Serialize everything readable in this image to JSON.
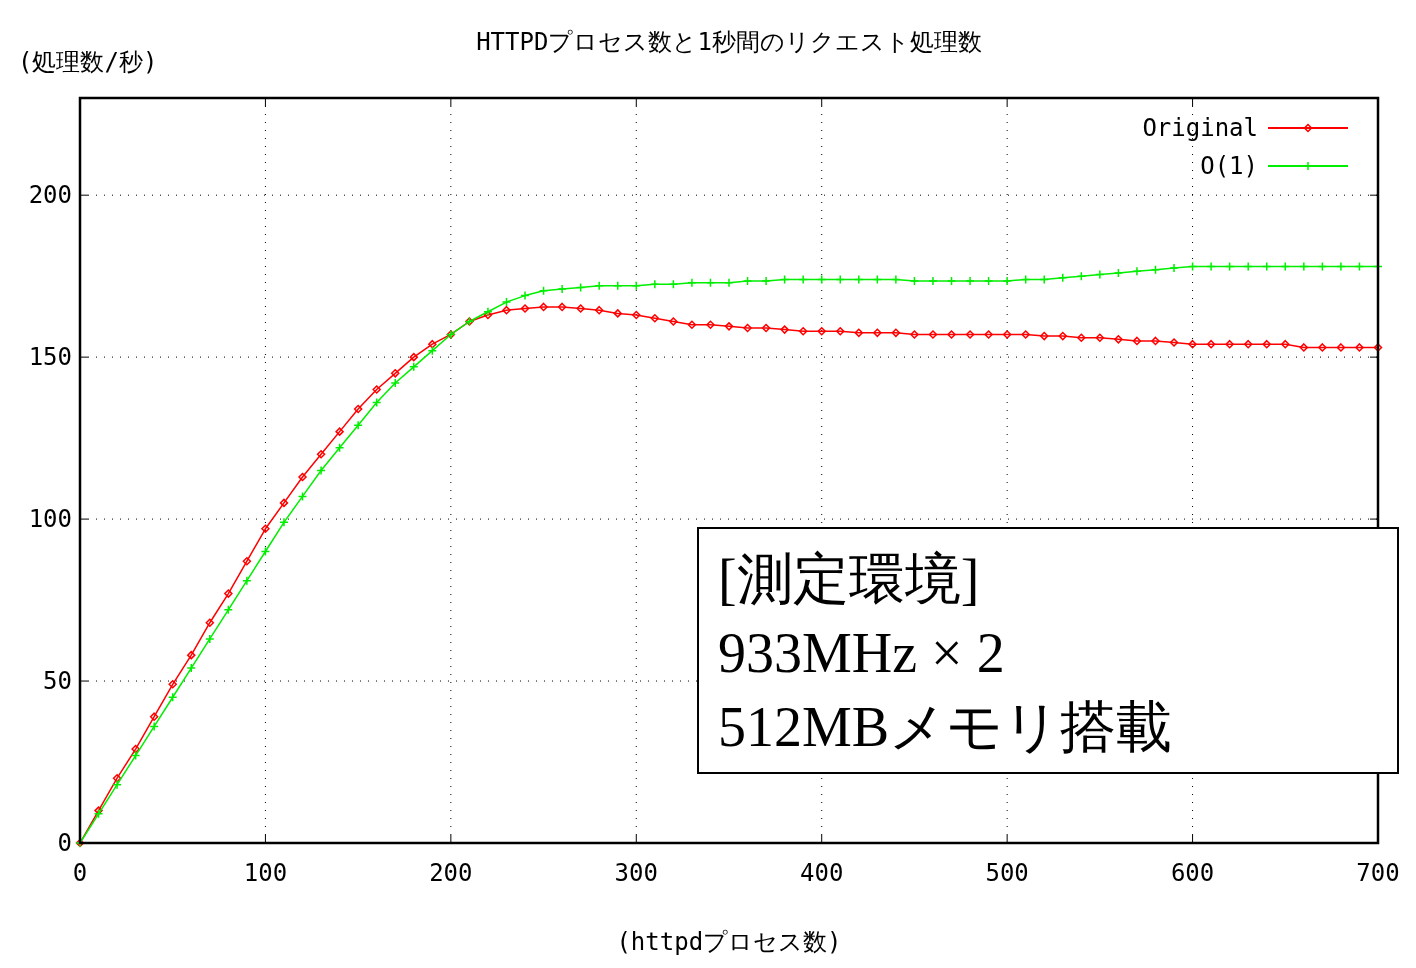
{
  "chart_data": {
    "type": "line",
    "title": "HTTPDプロセス数と1秒間のリクエスト処理数",
    "xlabel": "(httpdプロセス数)",
    "ylabel": "(処理数/秒)",
    "x": [
      0,
      10,
      20,
      30,
      40,
      50,
      60,
      70,
      80,
      90,
      100,
      110,
      120,
      130,
      140,
      150,
      160,
      170,
      180,
      190,
      200,
      210,
      220,
      230,
      240,
      250,
      260,
      270,
      280,
      290,
      300,
      310,
      320,
      330,
      340,
      350,
      360,
      370,
      380,
      390,
      400,
      410,
      420,
      430,
      440,
      450,
      460,
      470,
      480,
      490,
      500,
      510,
      520,
      530,
      540,
      550,
      560,
      570,
      580,
      590,
      600,
      610,
      620,
      630,
      640,
      650,
      660,
      670,
      680,
      690,
      700
    ],
    "series": [
      {
        "name": "Original",
        "color": "#ff0000",
        "marker": "diamond",
        "values": [
          0,
          10,
          20,
          29,
          39,
          49,
          58,
          68,
          77,
          87,
          97,
          105,
          113,
          120,
          127,
          134,
          140,
          145,
          150,
          154,
          157,
          161,
          163,
          164.5,
          165,
          165.5,
          165.5,
          165,
          164.5,
          163.5,
          163,
          162,
          161,
          160,
          160,
          159.5,
          159,
          159,
          158.5,
          158,
          158,
          158,
          157.5,
          157.5,
          157.5,
          157,
          157,
          157,
          157,
          157,
          157,
          157,
          156.5,
          156.5,
          156,
          156,
          155.5,
          155,
          155,
          154.5,
          154,
          154,
          154,
          154,
          154,
          154,
          153,
          153,
          153,
          153,
          153
        ]
      },
      {
        "name": "O(1)",
        "color": "#00ee00",
        "marker": "cross",
        "values": [
          0,
          9,
          18,
          27,
          36,
          45,
          54,
          63,
          72,
          81,
          90,
          99,
          107,
          115,
          122,
          129,
          136,
          142,
          147,
          152,
          157,
          161,
          164,
          167,
          169,
          170.5,
          171,
          171.5,
          172,
          172,
          172,
          172.5,
          172.5,
          173,
          173,
          173,
          173.5,
          173.5,
          174,
          174,
          174,
          174,
          174,
          174,
          174,
          173.5,
          173.5,
          173.5,
          173.5,
          173.5,
          173.5,
          174,
          174,
          174.5,
          175,
          175.5,
          176,
          176.5,
          177,
          177.5,
          178,
          178,
          178,
          178,
          178,
          178,
          178,
          178,
          178,
          178,
          178
        ]
      }
    ],
    "xlim": [
      0,
      700
    ],
    "xticks": [
      0,
      100,
      200,
      300,
      400,
      500,
      600,
      700
    ],
    "ylim": [
      0,
      230
    ],
    "yticks": [
      0,
      50,
      100,
      150,
      200
    ],
    "grid": true,
    "legend": "top right",
    "line_style": "solid",
    "annotations": [
      "[測定環境]",
      "933MHz × 2",
      "512MBメモリ搭載"
    ]
  }
}
